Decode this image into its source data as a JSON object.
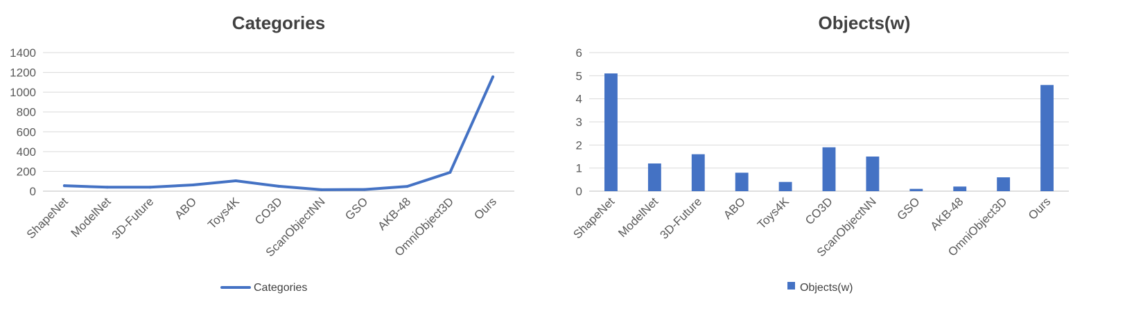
{
  "chart_data": [
    {
      "type": "line",
      "title": "Categories",
      "categories": [
        "ShapeNet",
        "ModelNet",
        "3D-Future",
        "ABO",
        "Toys4K",
        "CO3D",
        "ScanObjectNN",
        "GSO",
        "AKB-48",
        "OmniObject3D",
        "Ours"
      ],
      "series": [
        {
          "name": "Categories",
          "values": [
            55,
            40,
            40,
            63,
            105,
            50,
            15,
            17,
            48,
            190,
            1156
          ]
        }
      ],
      "ylim": [
        0,
        1400
      ],
      "yticks": [
        0,
        200,
        400,
        600,
        800,
        1000,
        1200,
        1400
      ],
      "grid": true,
      "legend": "bottom",
      "color": "#4472C4"
    },
    {
      "type": "bar",
      "title": "Objects(w)",
      "categories": [
        "ShapeNet",
        "ModelNet",
        "3D-Future",
        "ABO",
        "Toys4K",
        "CO3D",
        "ScanObjectNN",
        "GSO",
        "AKB-48",
        "OmniObject3D",
        "Ours"
      ],
      "series": [
        {
          "name": "Objects(w)",
          "values": [
            5.1,
            1.2,
            1.6,
            0.8,
            0.4,
            1.9,
            1.5,
            0.1,
            0.2,
            0.6,
            4.6
          ]
        }
      ],
      "ylim": [
        0,
        6
      ],
      "yticks": [
        0,
        1,
        2,
        3,
        4,
        5,
        6
      ],
      "grid": true,
      "legend": "bottom",
      "color": "#4472C4"
    }
  ]
}
